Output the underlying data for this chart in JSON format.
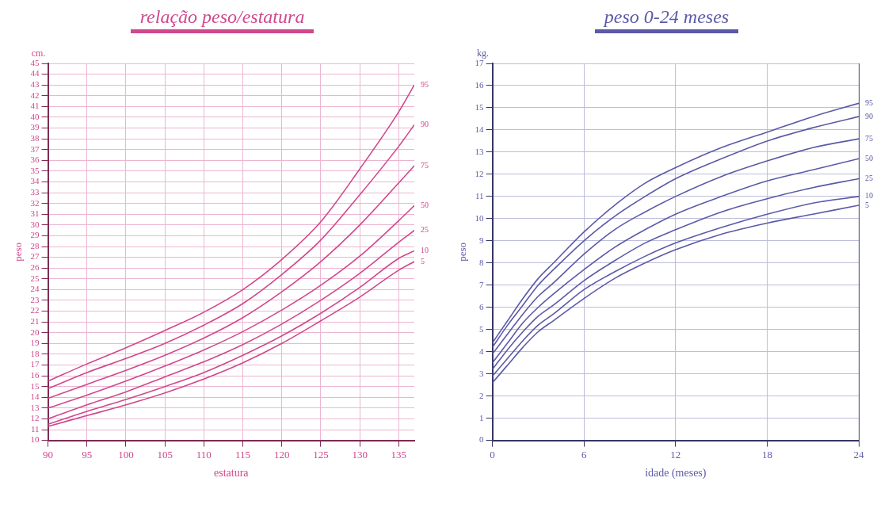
{
  "chart_data": [
    {
      "type": "line",
      "title": "relação peso/estatura",
      "xlabel": "estatura",
      "ylabel": "peso",
      "annotations": [
        "cm."
      ],
      "x": [
        90,
        95,
        100,
        105,
        110,
        115,
        120,
        125,
        130,
        135,
        137
      ],
      "xlim": [
        90,
        137
      ],
      "xticks": [
        90,
        95,
        100,
        105,
        110,
        115,
        120,
        125,
        130,
        135
      ],
      "ylim": [
        10,
        45
      ],
      "yticks": [
        10,
        11,
        12,
        13,
        14,
        15,
        16,
        17,
        18,
        19,
        20,
        21,
        22,
        23,
        24,
        25,
        26,
        27,
        28,
        29,
        30,
        31,
        32,
        33,
        34,
        35,
        36,
        37,
        38,
        39,
        40,
        41,
        42,
        43,
        44,
        45
      ],
      "grid": true,
      "legend": false,
      "marker": "none",
      "line_style": "solid",
      "series": [
        {
          "name": "95",
          "color": "#d0488c",
          "values": [
            15.5,
            17.1,
            18.6,
            20.2,
            21.9,
            24.0,
            26.8,
            30.3,
            35.2,
            40.5,
            43.0
          ]
        },
        {
          "name": "90",
          "color": "#d0488c",
          "values": [
            14.8,
            16.3,
            17.6,
            19.0,
            20.7,
            22.7,
            25.4,
            28.6,
            32.8,
            37.3,
            39.3
          ]
        },
        {
          "name": "75",
          "color": "#d0488c",
          "values": [
            13.9,
            15.2,
            16.5,
            17.9,
            19.5,
            21.4,
            23.8,
            26.6,
            30.0,
            33.9,
            35.5
          ]
        },
        {
          "name": "50",
          "color": "#d0488c",
          "values": [
            13.0,
            14.2,
            15.5,
            16.9,
            18.4,
            20.1,
            22.1,
            24.4,
            27.1,
            30.4,
            31.8
          ]
        },
        {
          "name": "25",
          "color": "#d0488c",
          "values": [
            12.0,
            13.3,
            14.5,
            15.9,
            17.3,
            18.9,
            20.8,
            23.0,
            25.5,
            28.4,
            29.5
          ]
        },
        {
          "name": "10",
          "color": "#d0488c",
          "values": [
            11.5,
            12.7,
            13.8,
            15.0,
            16.3,
            17.9,
            19.7,
            21.8,
            24.2,
            26.9,
            27.6
          ]
        },
        {
          "name": "5",
          "color": "#d0488c",
          "values": [
            11.3,
            12.3,
            13.3,
            14.4,
            15.7,
            17.2,
            19.0,
            21.1,
            23.3,
            25.8,
            26.6
          ]
        }
      ]
    },
    {
      "type": "line",
      "title": "peso 0-24 meses",
      "xlabel": "idade (meses)",
      "ylabel": "peso",
      "annotations": [
        "kg."
      ],
      "x": [
        0,
        1,
        2,
        3,
        4,
        6,
        8,
        10,
        12,
        15,
        18,
        21,
        24
      ],
      "xlim": [
        0,
        24
      ],
      "xticks": [
        0,
        6,
        12,
        18,
        24
      ],
      "ylim": [
        0,
        17
      ],
      "yticks": [
        0,
        1,
        2,
        3,
        4,
        5,
        6,
        7,
        8,
        9,
        10,
        11,
        12,
        13,
        14,
        15,
        16,
        17
      ],
      "grid": true,
      "legend": false,
      "marker": "none",
      "line_style": "solid",
      "series": [
        {
          "name": "95",
          "color": "#5a5aa8",
          "values": [
            4.4,
            5.4,
            6.4,
            7.3,
            8.0,
            9.4,
            10.6,
            11.6,
            12.3,
            13.2,
            13.9,
            14.6,
            15.2
          ]
        },
        {
          "name": "90",
          "color": "#5a5aa8",
          "values": [
            4.2,
            5.2,
            6.1,
            7.0,
            7.7,
            9.0,
            10.1,
            11.0,
            11.8,
            12.7,
            13.5,
            14.1,
            14.6
          ]
        },
        {
          "name": "75",
          "color": "#5a5aa8",
          "values": [
            3.9,
            4.8,
            5.7,
            6.5,
            7.1,
            8.4,
            9.5,
            10.3,
            11.0,
            11.9,
            12.6,
            13.2,
            13.6
          ]
        },
        {
          "name": "50",
          "color": "#5a5aa8",
          "values": [
            3.5,
            4.4,
            5.3,
            6.0,
            6.6,
            7.7,
            8.7,
            9.5,
            10.2,
            11.0,
            11.7,
            12.2,
            12.7
          ]
        },
        {
          "name": "25",
          "color": "#5a5aa8",
          "values": [
            3.2,
            4.1,
            4.9,
            5.6,
            6.1,
            7.2,
            8.1,
            8.9,
            9.5,
            10.3,
            10.9,
            11.4,
            11.8
          ]
        },
        {
          "name": "10",
          "color": "#5a5aa8",
          "values": [
            2.9,
            3.7,
            4.5,
            5.2,
            5.7,
            6.8,
            7.6,
            8.3,
            8.9,
            9.6,
            10.2,
            10.7,
            11.0
          ]
        },
        {
          "name": "5",
          "color": "#5a5aa8",
          "values": [
            2.6,
            3.4,
            4.2,
            4.9,
            5.4,
            6.4,
            7.3,
            8.0,
            8.6,
            9.3,
            9.8,
            10.2,
            10.6
          ]
        }
      ]
    }
  ]
}
